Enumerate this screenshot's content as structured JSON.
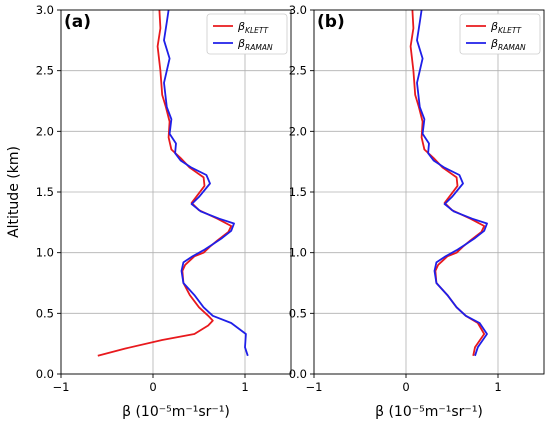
{
  "chart_data": [
    {
      "type": "line",
      "panel_label": "(a)",
      "xlabel": "β (10⁻⁵m⁻¹sr⁻¹)",
      "ylabel": "Altitude (km)",
      "xlim": [
        -1,
        1.5
      ],
      "ylim": [
        0,
        3
      ],
      "xticks": [
        -1,
        0,
        1
      ],
      "yticks": [
        0.0,
        0.5,
        1.0,
        1.5,
        2.0,
        2.5,
        3.0
      ],
      "grid": true,
      "legend_position": "top-right",
      "series": [
        {
          "name": "β",
          "subscript": "KLETT",
          "color": "#e8191d",
          "points": [
            [
              -0.6,
              0.15
            ],
            [
              -0.3,
              0.21
            ],
            [
              0.1,
              0.28
            ],
            [
              0.45,
              0.33
            ],
            [
              0.6,
              0.4
            ],
            [
              0.65,
              0.44
            ],
            [
              0.6,
              0.48
            ],
            [
              0.5,
              0.55
            ],
            [
              0.4,
              0.65
            ],
            [
              0.33,
              0.75
            ],
            [
              0.32,
              0.85
            ],
            [
              0.35,
              0.9
            ],
            [
              0.45,
              0.97
            ],
            [
              0.55,
              1.0
            ],
            [
              0.62,
              1.05
            ],
            [
              0.7,
              1.1
            ],
            [
              0.82,
              1.17
            ],
            [
              0.85,
              1.22
            ],
            [
              0.7,
              1.28
            ],
            [
              0.5,
              1.35
            ],
            [
              0.42,
              1.41
            ],
            [
              0.48,
              1.47
            ],
            [
              0.56,
              1.55
            ],
            [
              0.55,
              1.62
            ],
            [
              0.4,
              1.7
            ],
            [
              0.3,
              1.78
            ],
            [
              0.2,
              1.85
            ],
            [
              0.17,
              1.95
            ],
            [
              0.18,
              2.08
            ],
            [
              0.14,
              2.2
            ],
            [
              0.1,
              2.3
            ],
            [
              0.08,
              2.5
            ],
            [
              0.05,
              2.7
            ],
            [
              0.08,
              2.85
            ],
            [
              0.07,
              3.0
            ]
          ]
        },
        {
          "name": "β",
          "subscript": "RAMAN",
          "color": "#1f1fe8",
          "points": [
            [
              1.03,
              0.15
            ],
            [
              1.0,
              0.22
            ],
            [
              1.01,
              0.33
            ],
            [
              0.85,
              0.42
            ],
            [
              0.65,
              0.48
            ],
            [
              0.55,
              0.55
            ],
            [
              0.45,
              0.65
            ],
            [
              0.33,
              0.75
            ],
            [
              0.31,
              0.85
            ],
            [
              0.33,
              0.92
            ],
            [
              0.43,
              0.97
            ],
            [
              0.55,
              1.02
            ],
            [
              0.65,
              1.07
            ],
            [
              0.75,
              1.12
            ],
            [
              0.85,
              1.18
            ],
            [
              0.88,
              1.24
            ],
            [
              0.72,
              1.28
            ],
            [
              0.52,
              1.34
            ],
            [
              0.42,
              1.4
            ],
            [
              0.5,
              1.46
            ],
            [
              0.62,
              1.57
            ],
            [
              0.58,
              1.64
            ],
            [
              0.42,
              1.7
            ],
            [
              0.3,
              1.76
            ],
            [
              0.24,
              1.82
            ],
            [
              0.25,
              1.9
            ],
            [
              0.18,
              1.98
            ],
            [
              0.2,
              2.1
            ],
            [
              0.15,
              2.2
            ],
            [
              0.12,
              2.4
            ],
            [
              0.18,
              2.6
            ],
            [
              0.12,
              2.75
            ],
            [
              0.15,
              2.9
            ],
            [
              0.17,
              3.0
            ]
          ]
        }
      ]
    },
    {
      "type": "line",
      "panel_label": "(b)",
      "xlabel": "β (10⁻⁵m⁻¹sr⁻¹)",
      "ylabel": "",
      "xlim": [
        -1,
        1.5
      ],
      "ylim": [
        0,
        3
      ],
      "xticks": [
        -1,
        0,
        1
      ],
      "yticks": [
        0.0,
        0.5,
        1.0,
        1.5,
        2.0,
        2.5,
        3.0
      ],
      "grid": true,
      "legend_position": "top-right",
      "series": [
        {
          "name": "β",
          "subscript": "KLETT",
          "color": "#e8191d",
          "points": [
            [
              0.73,
              0.15
            ],
            [
              0.75,
              0.22
            ],
            [
              0.85,
              0.33
            ],
            [
              0.78,
              0.42
            ],
            [
              0.65,
              0.48
            ],
            [
              0.55,
              0.55
            ],
            [
              0.45,
              0.65
            ],
            [
              0.33,
              0.75
            ],
            [
              0.32,
              0.85
            ],
            [
              0.35,
              0.9
            ],
            [
              0.45,
              0.97
            ],
            [
              0.55,
              1.0
            ],
            [
              0.62,
              1.05
            ],
            [
              0.7,
              1.1
            ],
            [
              0.82,
              1.17
            ],
            [
              0.85,
              1.22
            ],
            [
              0.7,
              1.28
            ],
            [
              0.5,
              1.35
            ],
            [
              0.42,
              1.41
            ],
            [
              0.48,
              1.47
            ],
            [
              0.56,
              1.55
            ],
            [
              0.55,
              1.62
            ],
            [
              0.4,
              1.7
            ],
            [
              0.3,
              1.78
            ],
            [
              0.2,
              1.85
            ],
            [
              0.17,
              1.95
            ],
            [
              0.18,
              2.08
            ],
            [
              0.14,
              2.2
            ],
            [
              0.1,
              2.3
            ],
            [
              0.08,
              2.5
            ],
            [
              0.05,
              2.7
            ],
            [
              0.08,
              2.85
            ],
            [
              0.07,
              3.0
            ]
          ]
        },
        {
          "name": "β",
          "subscript": "RAMAN",
          "color": "#1f1fe8",
          "points": [
            [
              0.75,
              0.15
            ],
            [
              0.78,
              0.22
            ],
            [
              0.88,
              0.33
            ],
            [
              0.8,
              0.42
            ],
            [
              0.65,
              0.48
            ],
            [
              0.55,
              0.55
            ],
            [
              0.45,
              0.65
            ],
            [
              0.33,
              0.75
            ],
            [
              0.31,
              0.85
            ],
            [
              0.33,
              0.92
            ],
            [
              0.43,
              0.97
            ],
            [
              0.55,
              1.02
            ],
            [
              0.65,
              1.07
            ],
            [
              0.75,
              1.12
            ],
            [
              0.85,
              1.18
            ],
            [
              0.88,
              1.24
            ],
            [
              0.72,
              1.28
            ],
            [
              0.52,
              1.34
            ],
            [
              0.42,
              1.4
            ],
            [
              0.5,
              1.46
            ],
            [
              0.62,
              1.57
            ],
            [
              0.58,
              1.64
            ],
            [
              0.42,
              1.7
            ],
            [
              0.3,
              1.76
            ],
            [
              0.24,
              1.82
            ],
            [
              0.25,
              1.9
            ],
            [
              0.18,
              1.98
            ],
            [
              0.2,
              2.1
            ],
            [
              0.15,
              2.2
            ],
            [
              0.12,
              2.4
            ],
            [
              0.18,
              2.6
            ],
            [
              0.12,
              2.75
            ],
            [
              0.15,
              2.9
            ],
            [
              0.17,
              3.0
            ]
          ]
        }
      ]
    }
  ]
}
